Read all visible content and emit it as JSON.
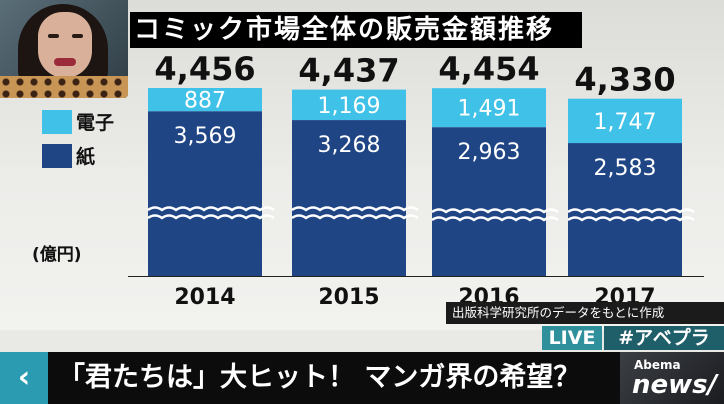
{
  "title": "コミック市場全体の販売金額推移",
  "legend": [
    {
      "label": "電子",
      "color": "#40c2e8"
    },
    {
      "label": "紙",
      "color": "#1f4585"
    }
  ],
  "unit": "(億円)",
  "source": "出版科学研究所のデータをもとに作成",
  "live_label": "LIVE",
  "hashtag": "#アベプラ",
  "caption": "「君たちは」大ヒット！ マンガ界の希望？",
  "back_icon": "chevron-left-icon",
  "logo": {
    "top": "Abema",
    "bottom": "news/"
  },
  "chart_data": {
    "type": "bar",
    "stacked": true,
    "title": "コミック市場全体の販売金額推移",
    "categories": [
      "2014",
      "2015",
      "2016",
      "2017"
    ],
    "series": [
      {
        "name": "紙",
        "values": [
          3569,
          3268,
          2963,
          2583
        ],
        "labels": [
          "3,569",
          "3,268",
          "2,963",
          "2,583"
        ],
        "color": "#1f4585"
      },
      {
        "name": "電子",
        "values": [
          887,
          1169,
          1491,
          1747
        ],
        "labels": [
          "887",
          "1,169",
          "1,491",
          "1,747"
        ],
        "color": "#40c2e8"
      }
    ],
    "totals": [
      4456,
      4437,
      4454,
      4330
    ],
    "total_labels": [
      "4,456",
      "4,437",
      "4,454",
      "4,330"
    ],
    "ylabel": "(億円)",
    "axis_break": true,
    "legend_position": "left"
  }
}
